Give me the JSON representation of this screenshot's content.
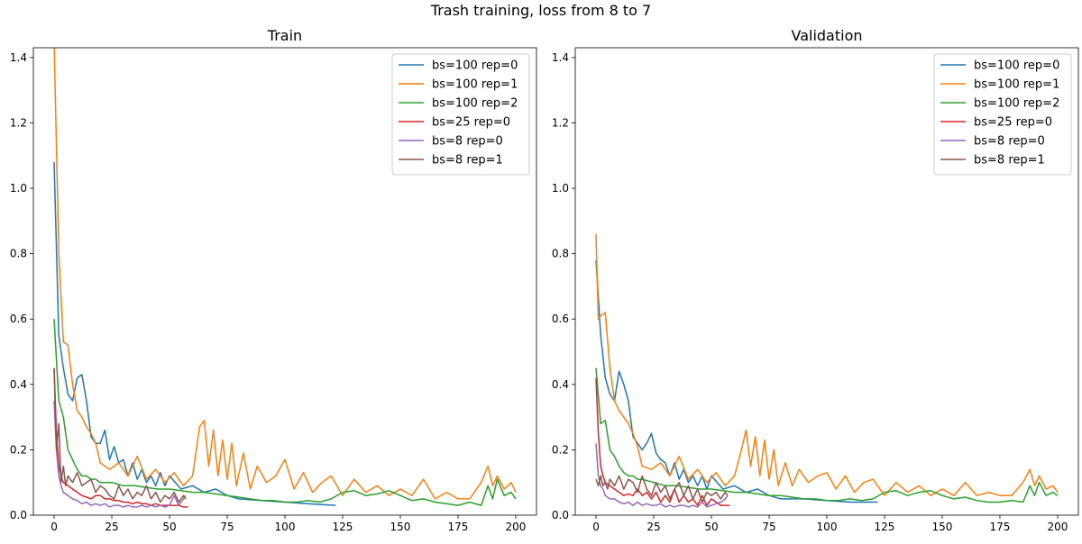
{
  "figure": {
    "suptitle": "Trash training, loss from 8 to 7"
  },
  "chart_data": [
    {
      "type": "line",
      "title": "Train",
      "xlabel": "",
      "ylabel": "",
      "xlim": [
        -9,
        209
      ],
      "ylim": [
        0,
        1.43
      ],
      "xticks": [
        0,
        25,
        50,
        75,
        100,
        125,
        150,
        175,
        200
      ],
      "yticks": [
        0.0,
        0.2,
        0.4,
        0.6,
        0.8,
        1.0,
        1.2,
        1.4
      ],
      "grid": false,
      "legend": "top-right",
      "series": [
        {
          "name": "bs=100 rep=0",
          "color": "#1f77b4",
          "x": [
            0,
            2,
            4,
            6,
            8,
            10,
            12,
            14,
            16,
            18,
            20,
            22,
            24,
            26,
            28,
            30,
            32,
            34,
            36,
            38,
            40,
            42,
            44,
            46,
            48,
            50,
            55,
            60,
            65,
            70,
            75,
            80,
            90,
            100,
            110,
            122
          ],
          "y": [
            1.08,
            0.55,
            0.45,
            0.37,
            0.35,
            0.42,
            0.43,
            0.35,
            0.24,
            0.22,
            0.22,
            0.26,
            0.17,
            0.21,
            0.16,
            0.17,
            0.12,
            0.16,
            0.11,
            0.14,
            0.1,
            0.12,
            0.09,
            0.13,
            0.09,
            0.12,
            0.08,
            0.09,
            0.07,
            0.08,
            0.06,
            0.05,
            0.045,
            0.04,
            0.035,
            0.03
          ]
        },
        {
          "name": "bs=100 rep=1",
          "color": "#ff7f0e",
          "x": [
            0,
            2,
            4,
            6,
            8,
            10,
            12,
            14,
            16,
            18,
            20,
            24,
            28,
            32,
            36,
            40,
            44,
            48,
            52,
            56,
            60,
            63,
            65,
            67,
            69,
            71,
            73,
            75,
            77,
            79,
            82,
            85,
            88,
            92,
            96,
            100,
            104,
            108,
            112,
            116,
            120,
            125,
            130,
            135,
            140,
            145,
            150,
            155,
            160,
            165,
            170,
            175,
            180,
            185,
            188,
            190,
            192,
            195,
            198,
            200
          ],
          "y": [
            1.45,
            0.8,
            0.53,
            0.52,
            0.4,
            0.32,
            0.3,
            0.27,
            0.25,
            0.22,
            0.16,
            0.14,
            0.16,
            0.12,
            0.18,
            0.11,
            0.14,
            0.1,
            0.13,
            0.09,
            0.12,
            0.27,
            0.29,
            0.15,
            0.26,
            0.12,
            0.23,
            0.11,
            0.22,
            0.09,
            0.19,
            0.08,
            0.15,
            0.1,
            0.12,
            0.17,
            0.08,
            0.13,
            0.07,
            0.1,
            0.12,
            0.06,
            0.11,
            0.07,
            0.09,
            0.06,
            0.08,
            0.06,
            0.11,
            0.05,
            0.07,
            0.05,
            0.05,
            0.1,
            0.15,
            0.09,
            0.12,
            0.08,
            0.1,
            0.07
          ]
        },
        {
          "name": "bs=100 rep=2",
          "color": "#2ca02c",
          "x": [
            0,
            2,
            4,
            6,
            8,
            10,
            12,
            14,
            16,
            18,
            20,
            25,
            30,
            35,
            40,
            45,
            50,
            55,
            60,
            65,
            70,
            75,
            80,
            85,
            90,
            95,
            100,
            105,
            110,
            115,
            120,
            125,
            130,
            135,
            140,
            145,
            150,
            155,
            160,
            165,
            170,
            175,
            180,
            185,
            188,
            190,
            192,
            195,
            198,
            200
          ],
          "y": [
            0.6,
            0.35,
            0.3,
            0.2,
            0.17,
            0.14,
            0.12,
            0.12,
            0.11,
            0.11,
            0.1,
            0.1,
            0.09,
            0.09,
            0.085,
            0.08,
            0.08,
            0.075,
            0.07,
            0.07,
            0.065,
            0.06,
            0.055,
            0.05,
            0.045,
            0.045,
            0.04,
            0.04,
            0.045,
            0.04,
            0.05,
            0.07,
            0.075,
            0.06,
            0.065,
            0.075,
            0.06,
            0.045,
            0.05,
            0.04,
            0.035,
            0.03,
            0.04,
            0.03,
            0.09,
            0.05,
            0.11,
            0.06,
            0.07,
            0.05
          ]
        },
        {
          "name": "bs=25 rep=0",
          "color": "#d62728",
          "x": [
            0,
            1,
            2,
            3,
            4,
            6,
            8,
            10,
            12,
            14,
            16,
            18,
            20,
            22,
            24,
            26,
            28,
            30,
            32,
            34,
            36,
            38,
            40,
            42,
            44,
            46,
            48,
            50,
            52,
            54,
            56,
            58
          ],
          "y": [
            0.45,
            0.25,
            0.15,
            0.12,
            0.1,
            0.09,
            0.08,
            0.07,
            0.06,
            0.055,
            0.05,
            0.06,
            0.06,
            0.05,
            0.05,
            0.045,
            0.045,
            0.04,
            0.04,
            0.035,
            0.04,
            0.035,
            0.035,
            0.03,
            0.035,
            0.03,
            0.03,
            0.03,
            0.03,
            0.03,
            0.025,
            0.025
          ]
        },
        {
          "name": "bs=8 rep=0",
          "color": "#9467bd",
          "x": [
            0,
            1,
            2,
            3,
            4,
            6,
            8,
            10,
            12,
            14,
            16,
            18,
            20,
            22,
            24,
            26,
            28,
            30,
            32,
            34,
            36,
            38,
            40,
            42,
            44,
            46,
            48,
            50,
            52,
            54,
            56,
            57
          ],
          "y": [
            0.35,
            0.2,
            0.12,
            0.09,
            0.07,
            0.06,
            0.05,
            0.045,
            0.035,
            0.04,
            0.03,
            0.035,
            0.03,
            0.035,
            0.025,
            0.03,
            0.03,
            0.025,
            0.03,
            0.025,
            0.025,
            0.03,
            0.025,
            0.03,
            0.025,
            0.03,
            0.025,
            0.03,
            0.06,
            0.03,
            0.05,
            0.06
          ]
        },
        {
          "name": "bs=8 rep=1",
          "color": "#8c564b",
          "x": [
            0,
            1,
            2,
            3,
            4,
            5,
            6,
            8,
            10,
            12,
            14,
            16,
            18,
            20,
            22,
            24,
            26,
            28,
            30,
            32,
            34,
            36,
            38,
            40,
            42,
            44,
            46,
            48,
            50,
            52,
            54,
            56,
            57
          ],
          "y": [
            0.45,
            0.2,
            0.28,
            0.1,
            0.15,
            0.09,
            0.12,
            0.1,
            0.13,
            0.09,
            0.1,
            0.11,
            0.07,
            0.09,
            0.08,
            0.06,
            0.05,
            0.09,
            0.06,
            0.08,
            0.05,
            0.07,
            0.06,
            0.09,
            0.05,
            0.07,
            0.04,
            0.06,
            0.05,
            0.07,
            0.04,
            0.06,
            0.05
          ]
        }
      ]
    },
    {
      "type": "line",
      "title": "Validation",
      "xlabel": "",
      "ylabel": "",
      "xlim": [
        -9,
        209
      ],
      "ylim": [
        0,
        1.43
      ],
      "xticks": [
        0,
        25,
        50,
        75,
        100,
        125,
        150,
        175,
        200
      ],
      "yticks": [
        0.0,
        0.2,
        0.4,
        0.6,
        0.8,
        1.0,
        1.2,
        1.4
      ],
      "grid": false,
      "legend": "top-right",
      "series": [
        {
          "name": "bs=100 rep=0",
          "color": "#1f77b4",
          "x": [
            0,
            2,
            4,
            6,
            8,
            10,
            12,
            14,
            16,
            18,
            20,
            22,
            24,
            26,
            28,
            30,
            32,
            34,
            36,
            38,
            40,
            42,
            44,
            46,
            48,
            50,
            55,
            60,
            65,
            70,
            75,
            80,
            90,
            100,
            110,
            122
          ],
          "y": [
            0.78,
            0.55,
            0.42,
            0.37,
            0.35,
            0.44,
            0.4,
            0.35,
            0.24,
            0.22,
            0.2,
            0.22,
            0.25,
            0.19,
            0.17,
            0.16,
            0.12,
            0.16,
            0.11,
            0.14,
            0.1,
            0.12,
            0.09,
            0.12,
            0.08,
            0.12,
            0.08,
            0.09,
            0.07,
            0.08,
            0.06,
            0.05,
            0.05,
            0.045,
            0.04,
            0.04
          ]
        },
        {
          "name": "bs=100 rep=1",
          "color": "#ff7f0e",
          "x": [
            0,
            1,
            2,
            4,
            6,
            8,
            10,
            12,
            14,
            16,
            18,
            20,
            24,
            28,
            32,
            36,
            40,
            44,
            48,
            52,
            56,
            60,
            63,
            65,
            67,
            69,
            71,
            73,
            75,
            77,
            79,
            82,
            85,
            88,
            92,
            96,
            100,
            104,
            108,
            112,
            116,
            120,
            125,
            130,
            135,
            140,
            145,
            150,
            155,
            160,
            165,
            170,
            175,
            180,
            185,
            188,
            190,
            192,
            195,
            198,
            200
          ],
          "y": [
            0.86,
            0.6,
            0.61,
            0.62,
            0.45,
            0.35,
            0.32,
            0.3,
            0.28,
            0.25,
            0.21,
            0.15,
            0.14,
            0.16,
            0.12,
            0.18,
            0.11,
            0.14,
            0.1,
            0.13,
            0.09,
            0.12,
            0.2,
            0.26,
            0.15,
            0.24,
            0.12,
            0.23,
            0.11,
            0.2,
            0.09,
            0.16,
            0.09,
            0.14,
            0.1,
            0.12,
            0.13,
            0.08,
            0.12,
            0.07,
            0.1,
            0.11,
            0.06,
            0.1,
            0.07,
            0.09,
            0.06,
            0.08,
            0.06,
            0.1,
            0.06,
            0.07,
            0.06,
            0.06,
            0.1,
            0.14,
            0.09,
            0.12,
            0.08,
            0.09,
            0.07
          ]
        },
        {
          "name": "bs=100 rep=2",
          "color": "#2ca02c",
          "x": [
            0,
            2,
            4,
            6,
            8,
            10,
            12,
            14,
            16,
            18,
            20,
            25,
            30,
            35,
            40,
            45,
            50,
            55,
            60,
            65,
            70,
            75,
            80,
            85,
            90,
            95,
            100,
            105,
            110,
            115,
            120,
            125,
            130,
            135,
            140,
            145,
            150,
            155,
            160,
            165,
            170,
            175,
            180,
            185,
            188,
            190,
            192,
            195,
            198,
            200
          ],
          "y": [
            0.45,
            0.28,
            0.29,
            0.2,
            0.18,
            0.15,
            0.13,
            0.12,
            0.12,
            0.11,
            0.11,
            0.1,
            0.09,
            0.09,
            0.085,
            0.08,
            0.08,
            0.075,
            0.07,
            0.07,
            0.065,
            0.06,
            0.06,
            0.055,
            0.05,
            0.05,
            0.045,
            0.045,
            0.05,
            0.045,
            0.05,
            0.07,
            0.075,
            0.06,
            0.07,
            0.075,
            0.06,
            0.05,
            0.055,
            0.045,
            0.04,
            0.04,
            0.045,
            0.04,
            0.09,
            0.06,
            0.1,
            0.06,
            0.07,
            0.06
          ]
        },
        {
          "name": "bs=25 rep=0",
          "color": "#d62728",
          "x": [
            0,
            1,
            2,
            3,
            4,
            6,
            8,
            10,
            12,
            14,
            16,
            18,
            20,
            22,
            24,
            26,
            28,
            30,
            32,
            34,
            36,
            38,
            40,
            42,
            44,
            46,
            48,
            50,
            52,
            54,
            56,
            58
          ],
          "y": [
            0.42,
            0.25,
            0.15,
            0.12,
            0.1,
            0.09,
            0.08,
            0.07,
            0.06,
            0.065,
            0.06,
            0.08,
            0.06,
            0.07,
            0.05,
            0.07,
            0.04,
            0.06,
            0.04,
            0.08,
            0.04,
            0.06,
            0.04,
            0.05,
            0.03,
            0.06,
            0.03,
            0.05,
            0.04,
            0.03,
            0.03,
            0.03
          ]
        },
        {
          "name": "bs=8 rep=0",
          "color": "#9467bd",
          "x": [
            0,
            1,
            2,
            3,
            4,
            6,
            8,
            10,
            12,
            14,
            16,
            18,
            20,
            22,
            24,
            26,
            28,
            30,
            32,
            34,
            36,
            38,
            40,
            42,
            44,
            46,
            48,
            50,
            52,
            54,
            56,
            57
          ],
          "y": [
            0.22,
            0.12,
            0.09,
            0.08,
            0.06,
            0.05,
            0.05,
            0.04,
            0.035,
            0.04,
            0.03,
            0.04,
            0.03,
            0.035,
            0.03,
            0.03,
            0.035,
            0.025,
            0.03,
            0.025,
            0.03,
            0.03,
            0.025,
            0.03,
            0.025,
            0.04,
            0.025,
            0.03,
            0.035,
            0.04,
            0.05,
            0.06
          ]
        },
        {
          "name": "bs=8 rep=1",
          "color": "#8c564b",
          "x": [
            0,
            1,
            2,
            3,
            4,
            5,
            6,
            8,
            10,
            12,
            14,
            16,
            18,
            20,
            22,
            24,
            26,
            28,
            30,
            32,
            34,
            36,
            38,
            40,
            42,
            44,
            46,
            48,
            50,
            52,
            54,
            56,
            57
          ],
          "y": [
            0.11,
            0.09,
            0.12,
            0.09,
            0.1,
            0.08,
            0.11,
            0.09,
            0.12,
            0.08,
            0.11,
            0.1,
            0.07,
            0.12,
            0.08,
            0.06,
            0.1,
            0.07,
            0.09,
            0.05,
            0.08,
            0.1,
            0.06,
            0.09,
            0.05,
            0.08,
            0.04,
            0.07,
            0.06,
            0.07,
            0.05,
            0.07,
            0.06
          ]
        }
      ]
    }
  ]
}
